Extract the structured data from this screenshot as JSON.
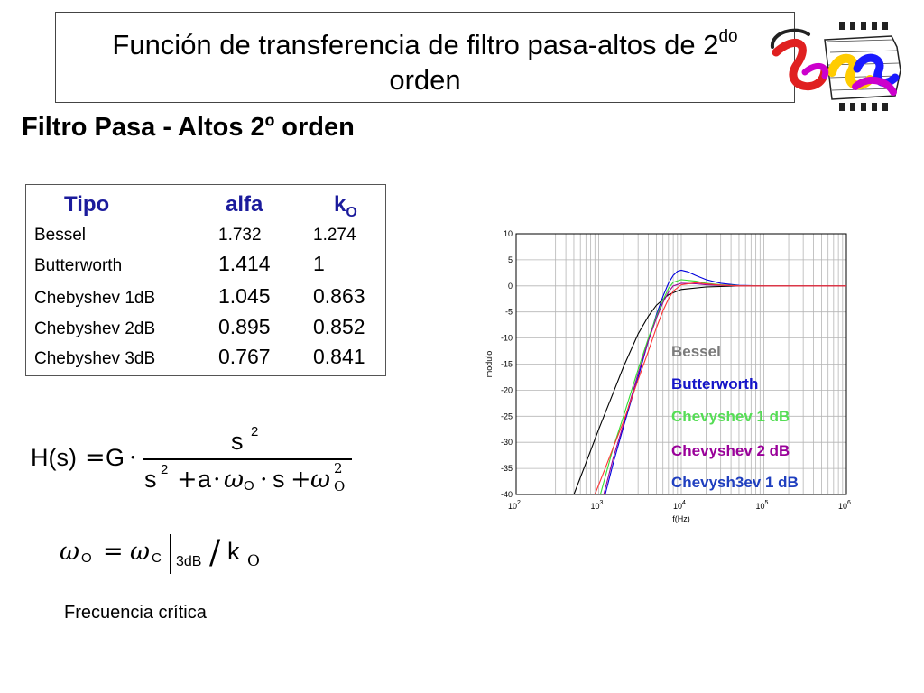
{
  "slide": {
    "title_main": "Función de transferencia de filtro pasa-altos de 2",
    "title_sup": "do",
    "title_line2": "orden",
    "subtitle": "Filtro Pasa - Altos 2º orden"
  },
  "table": {
    "headers": {
      "tipo": "Tipo",
      "alfa": "alfa",
      "k": "k",
      "k_sub": "O"
    },
    "rows": [
      {
        "tipo": "Bessel",
        "alfa": "1.732",
        "k": "1.274"
      },
      {
        "tipo": "Butterworth",
        "alfa": "1.414",
        "k": "1"
      },
      {
        "tipo": "Chebyshev 1dB",
        "alfa": "1.045",
        "k": "0.863"
      },
      {
        "tipo": "Chebyshev 2dB",
        "alfa": "0.895",
        "k": "0.852"
      },
      {
        "tipo": "Chebyshev 3dB",
        "alfa": "0.767",
        "k": "0.841"
      }
    ]
  },
  "formula": {
    "lhs": "H(s)",
    "eq": "=",
    "gain": "G",
    "dot": "·",
    "num_base": "s",
    "num_exp": "2",
    "den_s": "s",
    "den_s_exp": "2",
    "den_plus1": "+",
    "den_a": "a",
    "den_dot1": "·",
    "den_w": "ω",
    "den_w_sub": "O",
    "den_dot2": "·",
    "den_s2": "s",
    "den_plus2": "+",
    "den_w2": "ω",
    "den_w2_sub": "O",
    "den_w2_exp": "2"
  },
  "formula2": {
    "w": "ω",
    "w_sub": "O",
    "eq": "=",
    "wc": "ω",
    "wc_sub": "C",
    "eval_sub": "3dB",
    "slash": "/",
    "k": "k",
    "k_sub": "O"
  },
  "caption": "Frecuencia crítica",
  "chart_data": {
    "type": "line",
    "xlabel": "f(Hz)",
    "ylabel": "modulo",
    "xscale": "log",
    "xlim": [
      100,
      1000000
    ],
    "ylim": [
      -40,
      10
    ],
    "grid": true,
    "legend_placement": "bottom-right",
    "x_tick_labels": [
      {
        "base": "10",
        "exp": "2"
      },
      {
        "base": "10",
        "exp": "3"
      },
      {
        "base": "10",
        "exp": "4"
      },
      {
        "base": "10",
        "exp": "5"
      },
      {
        "base": "10",
        "exp": "6"
      }
    ],
    "y_tick_labels": [
      "10",
      "5",
      "0",
      "-5",
      "-10",
      "-15",
      "-20",
      "-25",
      "-30",
      "-35",
      "-40"
    ],
    "series": [
      {
        "name": "Bessel",
        "color": "#000000",
        "x": [
          500,
          700,
          1000,
          1500,
          2000,
          3000,
          4000,
          5000,
          7000,
          10000,
          20000,
          50000,
          100000,
          1000000
        ],
        "y": [
          -40,
          -34,
          -27.5,
          -20.5,
          -15.5,
          -9.2,
          -5.8,
          -3.7,
          -1.7,
          -0.7,
          -0.2,
          0,
          0,
          0
        ]
      },
      {
        "name": "Butterworth",
        "color": "#0000dd",
        "x": [
          1200,
          1500,
          2000,
          3000,
          4000,
          5000,
          6000,
          7000,
          8000,
          9000,
          10000,
          12000,
          15000,
          20000,
          30000,
          50000,
          100000,
          1000000
        ],
        "y": [
          -40,
          -34,
          -27,
          -17.5,
          -10.5,
          -5.5,
          -2,
          0.5,
          2,
          2.8,
          3,
          2.7,
          2,
          1.2,
          0.5,
          0.1,
          0,
          0
        ]
      },
      {
        "name": "Chevyshev 1 dB",
        "color": "#33dd33",
        "x": [
          1050,
          1500,
          2000,
          3000,
          4000,
          5000,
          6000,
          7000,
          8000,
          10000,
          15000,
          20000,
          30000,
          50000,
          100000,
          1000000
        ],
        "y": [
          -40,
          -31,
          -25,
          -16,
          -10,
          -5.8,
          -2.8,
          -0.5,
          0.7,
          1.2,
          0.9,
          0.5,
          0.2,
          0.05,
          0,
          0
        ]
      },
      {
        "name": "Chevyshev 2 dB",
        "color": "#990099",
        "x": [
          1150,
          1500,
          2000,
          3000,
          4000,
          5000,
          6000,
          7000,
          8000,
          10000,
          15000,
          20000,
          30000,
          50000,
          100000,
          1000000
        ],
        "y": [
          -40,
          -33,
          -26.5,
          -16.8,
          -10.5,
          -6.2,
          -3.2,
          -1.2,
          0,
          0.5,
          0.4,
          0.2,
          0.1,
          0,
          0,
          0
        ]
      },
      {
        "name": "Chevysh3ev 1 dB",
        "color": "#ff3333",
        "x": [
          900,
          1200,
          1500,
          2000,
          3000,
          4000,
          5000,
          6000,
          7000,
          8000,
          10000,
          15000,
          20000,
          30000,
          50000,
          100000,
          1000000
        ],
        "y": [
          -40,
          -35,
          -31,
          -26,
          -18,
          -12.5,
          -8,
          -4.8,
          -2.5,
          -1,
          0.2,
          0.6,
          0.4,
          0.15,
          0,
          0,
          0
        ]
      }
    ],
    "legend": [
      {
        "label": "Bessel",
        "color": "#7a7a7a"
      },
      {
        "label": "Butterworth",
        "color": "#1515c8"
      },
      {
        "label": "Chevyshev 1 dB",
        "color": "#55dd55"
      },
      {
        "label": "Chevyshev 2 dB",
        "color": "#990099"
      },
      {
        "label": "Chevysh3ev 1 dB",
        "color": "#1f3fbf"
      }
    ]
  }
}
